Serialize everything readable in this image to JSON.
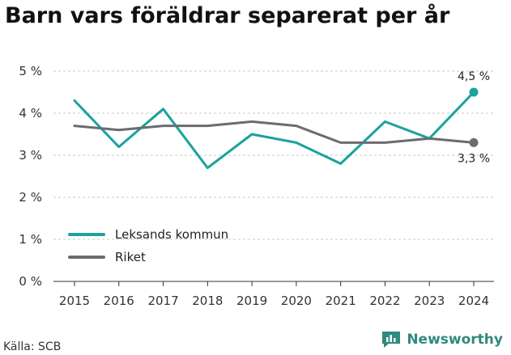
{
  "title": "Barn vars föräldrar separerat per år",
  "source": "Källa: SCB",
  "brand": {
    "name": "Newsworthy",
    "icon": "newsworthy-logo-icon",
    "color": "#2f8a7f"
  },
  "chart_data": {
    "type": "line",
    "x": [
      "2015",
      "2016",
      "2017",
      "2018",
      "2019",
      "2020",
      "2021",
      "2022",
      "2023",
      "2024"
    ],
    "ylim": [
      0,
      5
    ],
    "yticks": [
      "0 %",
      "1 %",
      "2 %",
      "3 %",
      "4 %",
      "5 %"
    ],
    "grid": true,
    "legend_position": "bottom-left",
    "series": [
      {
        "name": "Leksands kommun",
        "color": "#1ba39c",
        "values": [
          4.3,
          3.2,
          4.1,
          2.7,
          3.5,
          3.3,
          2.8,
          3.8,
          3.4,
          4.5
        ],
        "end_label": "4,5 %"
      },
      {
        "name": "Riket",
        "color": "#6b6b70",
        "values": [
          3.7,
          3.6,
          3.7,
          3.7,
          3.8,
          3.7,
          3.3,
          3.3,
          3.4,
          3.3
        ],
        "end_label": "3,3 %"
      }
    ]
  }
}
